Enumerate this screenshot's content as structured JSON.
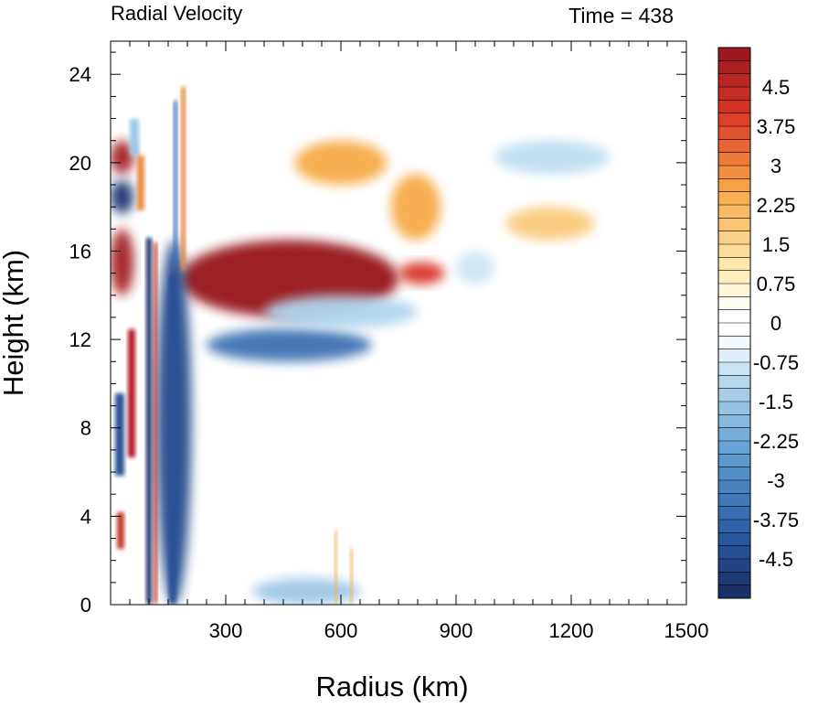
{
  "chart_data": {
    "type": "heatmap",
    "title_left": "Radial Velocity",
    "title_right": "Time = 438",
    "xlabel": "Radius (km)",
    "ylabel": "Height (km)",
    "xlim": [
      0,
      1500
    ],
    "ylim": [
      0,
      25.5
    ],
    "x_ticks": [
      300,
      600,
      900,
      1200,
      1500
    ],
    "x_tick_labels": [
      "300",
      "600",
      "900",
      "1200",
      "1500"
    ],
    "y_ticks": [
      0,
      4,
      8,
      12,
      16,
      20,
      24
    ],
    "y_tick_labels": [
      "0",
      "4",
      "8",
      "12",
      "16",
      "20",
      "24"
    ],
    "colorbar": {
      "min": -5.25,
      "max": 5.25,
      "step": 0.25,
      "labels": [
        "4.5",
        "3.75",
        "3",
        "2.25",
        "1.5",
        "0.75",
        "0",
        "-0.75",
        "-1.5",
        "-2.25",
        "-3",
        "-3.75",
        "-4.5"
      ],
      "label_values": [
        4.5,
        3.75,
        3,
        2.25,
        1.5,
        0.75,
        0,
        -0.75,
        -1.5,
        -2.25,
        -3,
        -3.75,
        -4.5
      ]
    },
    "features": [
      {
        "r": [
          180,
          750
        ],
        "z": [
          13.0,
          16.5
        ],
        "value": 5.5
      },
      {
        "r": [
          750,
          870
        ],
        "z": [
          14.5,
          15.5
        ],
        "value": 4.0
      },
      {
        "r": [
          250,
          680
        ],
        "z": [
          11.0,
          12.5
        ],
        "value": -3.5
      },
      {
        "r": [
          0,
          60
        ],
        "z": [
          19.5,
          21.0
        ],
        "value": 5.0
      },
      {
        "r": [
          0,
          60
        ],
        "z": [
          17.7,
          19.2
        ],
        "value": -5.0
      },
      {
        "r": [
          0,
          60
        ],
        "z": [
          14.0,
          17.0
        ],
        "value": 5.0
      },
      {
        "r": [
          120,
          210
        ],
        "z": [
          0.0,
          16.5
        ],
        "value": -4.5
      },
      {
        "r": [
          370,
          650
        ],
        "z": [
          0.0,
          1.2
        ],
        "value": -1.5
      },
      {
        "r": [
          480,
          720
        ],
        "z": [
          19.0,
          21.0
        ],
        "value": 2.5
      },
      {
        "r": [
          730,
          860
        ],
        "z": [
          16.5,
          19.5
        ],
        "value": 2.5
      },
      {
        "r": [
          1030,
          1260
        ],
        "z": [
          16.5,
          18.0
        ],
        "value": 1.8
      },
      {
        "r": [
          1000,
          1300
        ],
        "z": [
          19.5,
          21.0
        ],
        "value": -1.0
      },
      {
        "r": [
          900,
          1000
        ],
        "z": [
          14.5,
          16.0
        ],
        "value": -0.8
      },
      {
        "r": [
          400,
          800
        ],
        "z": [
          12.5,
          14.0
        ],
        "value": -1.2
      }
    ]
  }
}
